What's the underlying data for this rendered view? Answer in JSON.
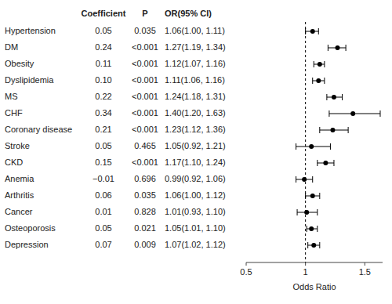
{
  "chart_data": {
    "type": "forest",
    "categories": [
      "Hypertension",
      "DM",
      "Obesity",
      "Dyslipidemia",
      "MS",
      "CHF",
      "Coronary disease",
      "Stroke",
      "CKD",
      "Anemia",
      "Arthritis",
      "Cancer",
      "Osteoporosis",
      "Depression"
    ],
    "values": [
      1.06,
      1.27,
      1.12,
      1.11,
      1.24,
      1.4,
      1.23,
      1.05,
      1.17,
      0.99,
      1.06,
      1.01,
      1.05,
      1.07
    ],
    "ci_low": [
      1.0,
      1.19,
      1.07,
      1.06,
      1.18,
      1.2,
      1.12,
      0.92,
      1.1,
      0.92,
      1.0,
      0.93,
      1.01,
      1.02
    ],
    "ci_high": [
      1.11,
      1.34,
      1.16,
      1.16,
      1.31,
      1.63,
      1.36,
      1.21,
      1.24,
      1.06,
      1.12,
      1.1,
      1.1,
      1.12
    ],
    "columns": [
      {
        "name": "Coefficient",
        "values": [
          "0.05",
          "0.24",
          "0.11",
          "0.10",
          "0.22",
          "0.34",
          "0.21",
          "0.05",
          "0.15",
          "−0.01",
          "0.06",
          "0.01",
          "0.05",
          "0.07"
        ]
      },
      {
        "name": "P",
        "values": [
          "0.035",
          "<0.001",
          "<0.001",
          "<0.001",
          "<0.001",
          "<0.001",
          "<0.001",
          "0.465",
          "<0.001",
          "0.696",
          "0.035",
          "0.828",
          "0.021",
          "0.009"
        ]
      },
      {
        "name": "OR(95% CI)",
        "values": [
          "1.06(1.00, 1.11)",
          "1.27(1.19, 1.34)",
          "1.12(1.07, 1.16)",
          "1.11(1.06, 1.16)",
          "1.24(1.18, 1.31)",
          "1.40(1.20, 1.63)",
          "1.23(1.12, 1.36)",
          "1.05(0.92, 1.21)",
          "1.17(1.10, 1.24)",
          "0.99(0.92, 1.06)",
          "1.06(1.00, 1.12)",
          "1.01(0.93, 1.10)",
          "1.05(1.01, 1.10)",
          "1.07(1.02, 1.12)"
        ]
      }
    ],
    "ref_line": 1.0,
    "xlabel": "Odds Ratio",
    "xlim": [
      0.5,
      1.65
    ],
    "xticks": [
      0.5,
      1,
      1.5
    ],
    "color": "#000000"
  }
}
